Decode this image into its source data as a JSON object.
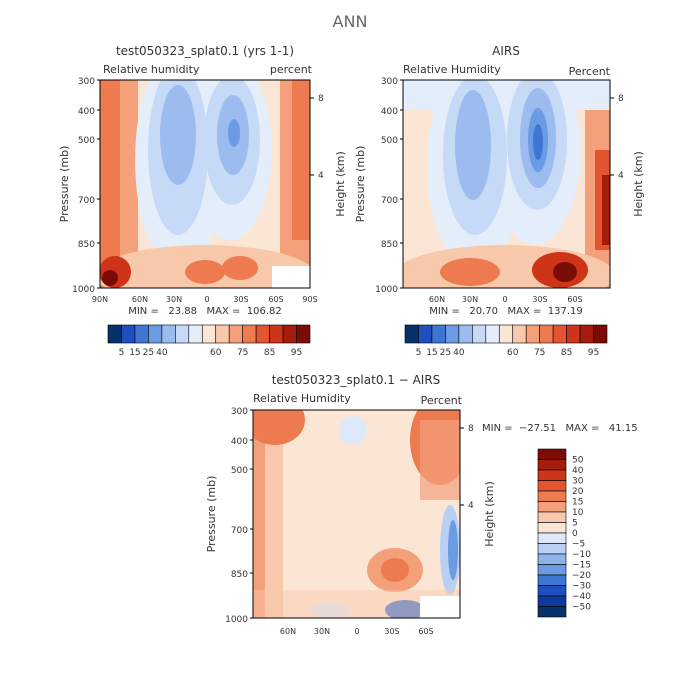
{
  "figure_title": "ANN",
  "chart_data": [
    {
      "type": "heatmap",
      "title": "test050323_splat0.1 (yrs 1-1)",
      "left_label": "Relative humidity",
      "right_label": "percent",
      "ylabel": "Pressure (mb)",
      "ylabel_right": "Height (km)",
      "y_ticks": [
        "300",
        "400",
        "500",
        "700",
        "850",
        "1000"
      ],
      "right_ticks": [
        "8",
        "4"
      ],
      "x_ticks": [
        "90N",
        "60N",
        "30N",
        "0",
        "30S",
        "60S",
        "90S"
      ],
      "stats": "MIN =   23.88   MAX =  106.82",
      "color_levels": [
        "5",
        "15",
        "25",
        "40",
        "60",
        "75",
        "85",
        "95"
      ],
      "colors": [
        "#08306b",
        "#1f4fbf",
        "#3f76d6",
        "#6b9be3",
        "#9cbcef",
        "#c6d9f6",
        "#e4edfa",
        "#fbe6d6",
        "#f8c8aa",
        "#f4a07a",
        "#ee7a50",
        "#e35530",
        "#cd3418",
        "#a51c0c",
        "#7a0c05"
      ]
    },
    {
      "type": "heatmap",
      "title": "AIRS",
      "left_label": "Relative Humidity",
      "right_label": "Percent",
      "ylabel": "Pressure (mb)",
      "ylabel_right": "Height (km)",
      "y_ticks": [
        "300",
        "400",
        "500",
        "700",
        "850",
        "1000"
      ],
      "right_ticks": [
        "8",
        "4"
      ],
      "x_ticks": [
        "60N",
        "30N",
        "0",
        "30S",
        "60S"
      ],
      "stats": "MIN =   20.70   MAX =  137.19",
      "color_levels": [
        "5",
        "15",
        "25",
        "40",
        "60",
        "75",
        "85",
        "95"
      ],
      "colors": [
        "#08306b",
        "#1f4fbf",
        "#3f76d6",
        "#6b9be3",
        "#9cbcef",
        "#c6d9f6",
        "#e4edfa",
        "#fbe6d6",
        "#f8c8aa",
        "#f4a07a",
        "#ee7a50",
        "#e35530",
        "#cd3418",
        "#a51c0c",
        "#7a0c05"
      ]
    },
    {
      "type": "heatmap",
      "title": "test050323_splat0.1 − AIRS",
      "left_label": "Relative Humidity",
      "right_label": "Percent",
      "ylabel": "Pressure (mb)",
      "ylabel_right": "Height (km)",
      "y_ticks": [
        "300",
        "400",
        "500",
        "700",
        "850",
        "1000"
      ],
      "right_ticks": [
        "8",
        "4"
      ],
      "x_ticks": [
        "60N",
        "30N",
        "0",
        "30S",
        "60S"
      ],
      "stats": "MIN =  −27.51   MAX =   41.15",
      "color_levels": [
        "50",
        "40",
        "30",
        "20",
        "15",
        "10",
        "5",
        "0",
        "−5",
        "−10",
        "−15",
        "−20",
        "−30",
        "−40",
        "−50"
      ],
      "colors": [
        "#7a0c05",
        "#a51c0c",
        "#cd3418",
        "#e35530",
        "#ee7a50",
        "#f4a07a",
        "#f8c8aa",
        "#fbe6d6",
        "#dde9f8",
        "#b8d0f3",
        "#8fb4ec",
        "#6b9be3",
        "#3f76d6",
        "#1f4fbf",
        "#0d3a9e",
        "#08306b"
      ]
    }
  ]
}
